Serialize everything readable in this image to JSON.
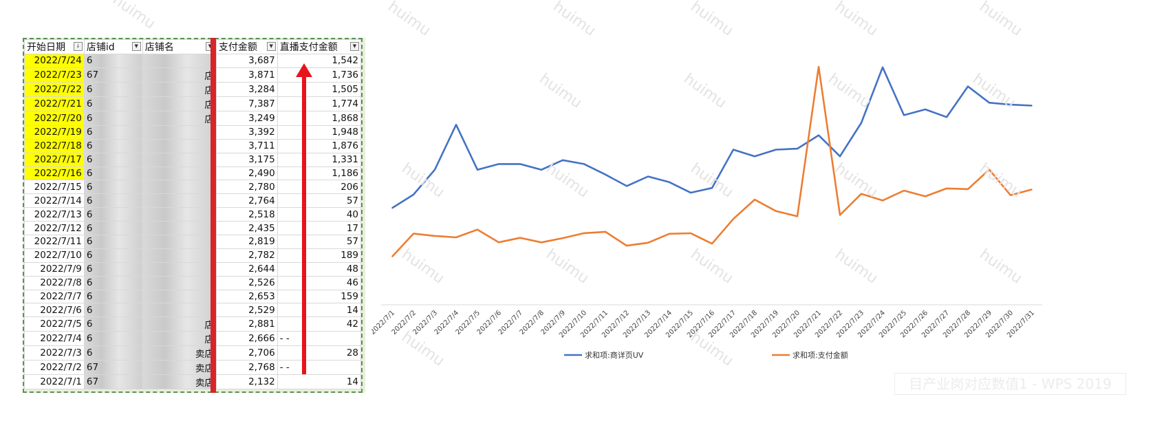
{
  "table": {
    "headers": [
      "开始日期",
      "店铺id",
      "店铺名",
      "支付金额",
      "直播支付金额"
    ],
    "rows": [
      {
        "date": "2022/7/24",
        "id": "6",
        "name": "",
        "pay": "3,687",
        "live": "1,542"
      },
      {
        "date": "2022/7/23",
        "id": "67",
        "name": "店",
        "pay": "3,871",
        "live": "1,736"
      },
      {
        "date": "2022/7/22",
        "id": "6",
        "name": "店",
        "pay": "3,284",
        "live": "1,505"
      },
      {
        "date": "2022/7/21",
        "id": "6",
        "name": "店",
        "pay": "7,387",
        "live": "1,774"
      },
      {
        "date": "2022/7/20",
        "id": "6",
        "name": "店",
        "pay": "3,249",
        "live": "1,868"
      },
      {
        "date": "2022/7/19",
        "id": "6",
        "name": "",
        "pay": "3,392",
        "live": "1,948"
      },
      {
        "date": "2022/7/18",
        "id": "6",
        "name": "",
        "pay": "3,711",
        "live": "1,876"
      },
      {
        "date": "2022/7/17",
        "id": "6",
        "name": "",
        "pay": "3,175",
        "live": "1,331"
      },
      {
        "date": "2022/7/16",
        "id": "6",
        "name": "",
        "pay": "2,490",
        "live": "1,186"
      },
      {
        "date": "2022/7/15",
        "id": "6",
        "name": "",
        "pay": "2,780",
        "live": "206"
      },
      {
        "date": "2022/7/14",
        "id": "6",
        "name": "",
        "pay": "2,764",
        "live": "57"
      },
      {
        "date": "2022/7/13",
        "id": "6",
        "name": "",
        "pay": "2,518",
        "live": "40"
      },
      {
        "date": "2022/7/12",
        "id": "6",
        "name": "",
        "pay": "2,435",
        "live": "17"
      },
      {
        "date": "2022/7/11",
        "id": "6",
        "name": "",
        "pay": "2,819",
        "live": "57"
      },
      {
        "date": "2022/7/10",
        "id": "6",
        "name": "",
        "pay": "2,782",
        "live": "189"
      },
      {
        "date": "2022/7/9",
        "id": "6",
        "name": "",
        "pay": "2,644",
        "live": "48"
      },
      {
        "date": "2022/7/8",
        "id": "6",
        "name": "",
        "pay": "2,526",
        "live": "46"
      },
      {
        "date": "2022/7/7",
        "id": "6",
        "name": "",
        "pay": "2,653",
        "live": "159"
      },
      {
        "date": "2022/7/6",
        "id": "6",
        "name": "",
        "pay": "2,529",
        "live": "14"
      },
      {
        "date": "2022/7/5",
        "id": "6",
        "name": "店",
        "pay": "2,881",
        "live": "42"
      },
      {
        "date": "2022/7/4",
        "id": "6",
        "name": "店",
        "pay": "2,666",
        "live": "- -"
      },
      {
        "date": "2022/7/3",
        "id": "6",
        "name": "卖店",
        "pay": "2,706",
        "live": "28"
      },
      {
        "date": "2022/7/2",
        "id": "67",
        "name": "卖店",
        "pay": "2,768",
        "live": "- -"
      },
      {
        "date": "2022/7/1",
        "id": "67",
        "name": "卖店",
        "pay": "2,132",
        "live": "14"
      }
    ],
    "highlight_color": "#ffff00",
    "highlighted_rows": 9
  },
  "chart_data": {
    "type": "line",
    "categories": [
      "2022/7/1",
      "2022/7/2",
      "2022/7/3",
      "2022/7/4",
      "2022/7/5",
      "2022/7/6",
      "2022/7/7",
      "2022/7/8",
      "2022/7/9",
      "2022/7/10",
      "2022/7/11",
      "2022/7/12",
      "2022/7/13",
      "2022/7/14",
      "2022/7/15",
      "2022/7/16",
      "2022/7/17",
      "2022/7/18",
      "2022/7/19",
      "2022/7/20",
      "2022/7/21",
      "2022/7/22",
      "2022/7/23",
      "2022/7/24",
      "2022/7/25",
      "2022/7/26",
      "2022/7/27",
      "2022/7/28",
      "2022/7/29",
      "2022/7/30",
      "2022/7/31"
    ],
    "series": [
      {
        "name": "求和项:商详页UV",
        "color": "#4472c4",
        "values": [
          201,
          215,
          241,
          288,
          241,
          247,
          247,
          241,
          251,
          247,
          236,
          224,
          234,
          228,
          217,
          222,
          262,
          255,
          262,
          263,
          277,
          255,
          290,
          348,
          298,
          304,
          296,
          328,
          311,
          309,
          308
        ]
      },
      {
        "name": "求和项:支付金额",
        "color": "#ed7d31",
        "values": [
          2132,
          2768,
          2706,
          2666,
          2881,
          2529,
          2653,
          2526,
          2644,
          2782,
          2819,
          2435,
          2518,
          2764,
          2780,
          2490,
          3175,
          3711,
          3392,
          3249,
          7387,
          3284,
          3871,
          3687,
          3960,
          3800,
          4020,
          4000,
          4540,
          3830,
          3990
        ]
      }
    ],
    "xlabel": "",
    "ylabel": "",
    "grid": false,
    "legend": "bottom"
  },
  "watermark": "huimu",
  "wps_banner": "目产业岗对应数值1 - WPS 2019"
}
